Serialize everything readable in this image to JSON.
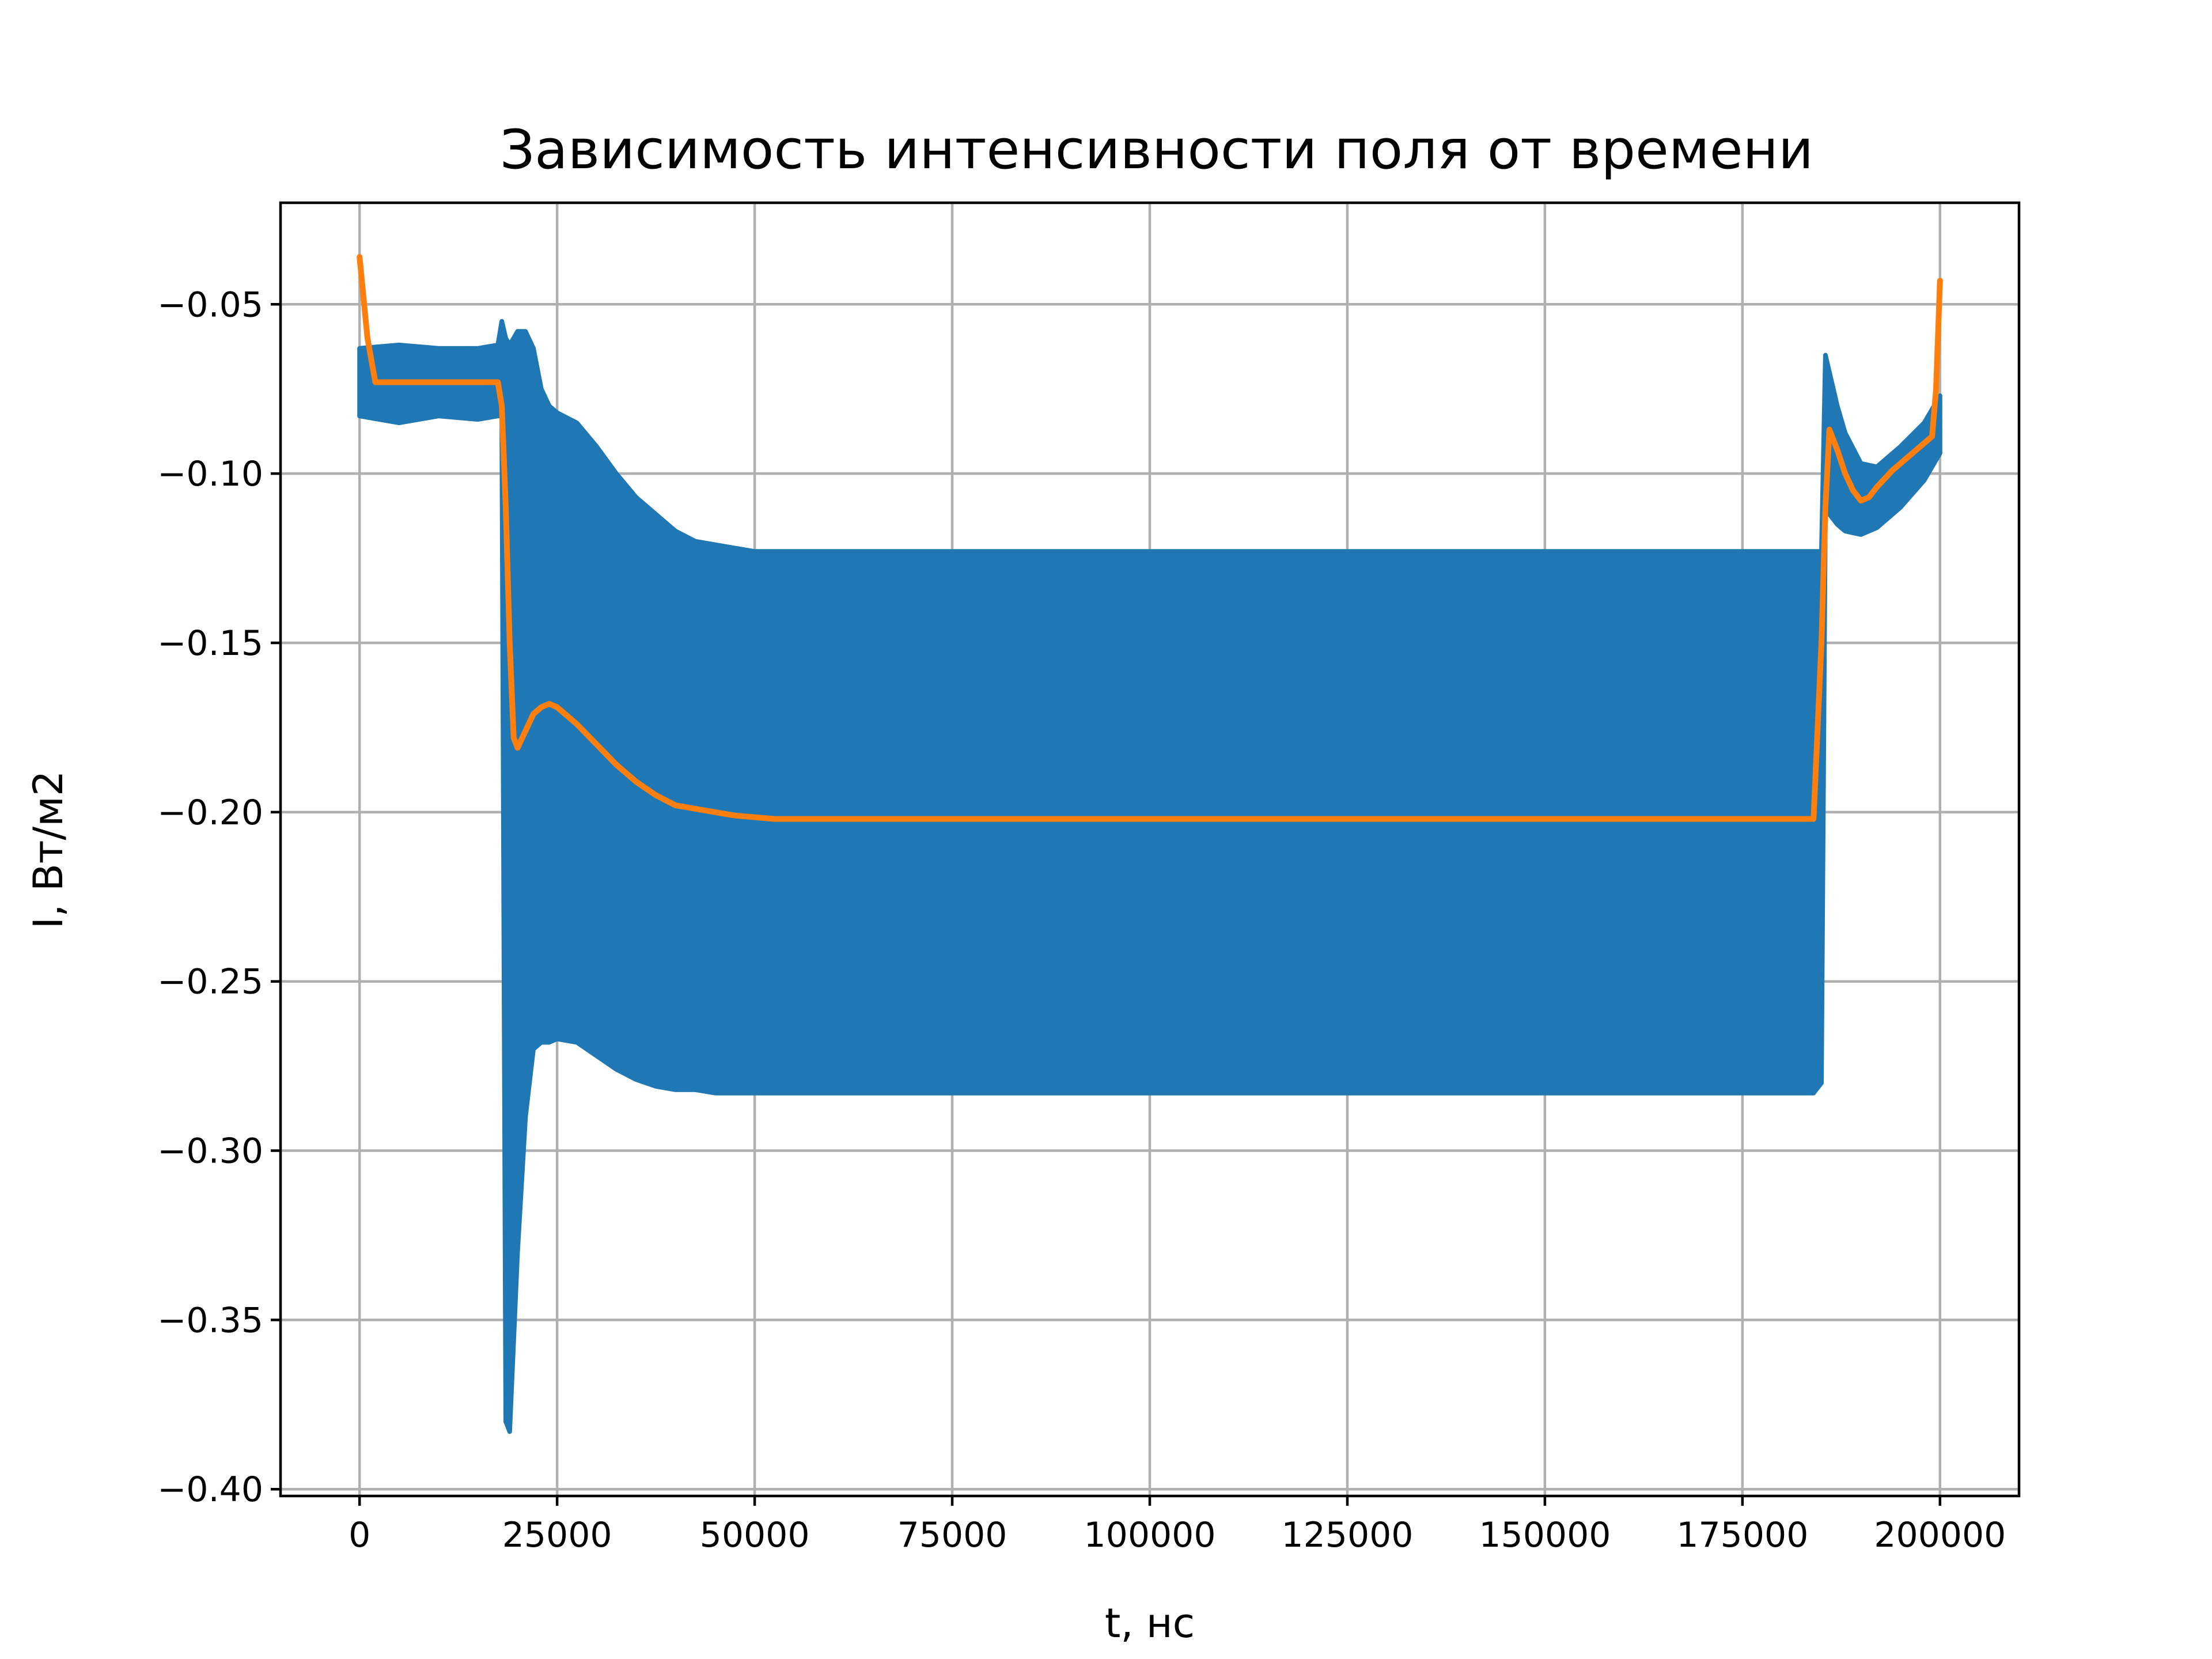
{
  "chart_data": {
    "type": "line",
    "title": "Зависимость интенсивности поля от времени",
    "xlabel": "t, нс",
    "ylabel": "I, Вт/м2",
    "xlim": [
      -10000,
      210000
    ],
    "ylim": [
      -0.402,
      -0.02
    ],
    "grid": true,
    "x_ticks": [
      0,
      25000,
      50000,
      75000,
      100000,
      125000,
      150000,
      175000,
      200000
    ],
    "x_tick_labels": [
      "0",
      "25000",
      "50000",
      "75000",
      "100000",
      "125000",
      "150000",
      "175000",
      "200000"
    ],
    "y_ticks": [
      -0.05,
      -0.1,
      -0.15,
      -0.2,
      -0.25,
      -0.3,
      -0.35,
      -0.4
    ],
    "y_tick_labels": [
      "−0.05",
      "−0.10",
      "−0.15",
      "−0.20",
      "−0.25",
      "−0.30",
      "−0.35",
      "−0.40"
    ],
    "series": [
      {
        "color": "#1f77b4",
        "kind": "band",
        "x": [
          0,
          5000,
          10000,
          15000,
          17500,
          18000,
          18500,
          19000,
          20000,
          21000,
          22000,
          23000,
          24000,
          25000,
          27500,
          30000,
          32500,
          35000,
          37500,
          40000,
          42500,
          45000,
          47500,
          50000,
          60000,
          75000,
          100000,
          125000,
          150000,
          175000,
          184000,
          185000,
          185500,
          186000,
          187000,
          188000,
          190000,
          192000,
          195000,
          198000,
          200000
        ],
        "upper": [
          -0.063,
          -0.062,
          -0.063,
          -0.063,
          -0.062,
          -0.055,
          -0.06,
          -0.062,
          -0.058,
          -0.058,
          -0.063,
          -0.075,
          -0.08,
          -0.082,
          -0.085,
          -0.092,
          -0.1,
          -0.107,
          -0.112,
          -0.117,
          -0.12,
          -0.121,
          -0.122,
          -0.123,
          -0.123,
          -0.123,
          -0.123,
          -0.123,
          -0.123,
          -0.123,
          -0.123,
          -0.123,
          -0.065,
          -0.07,
          -0.08,
          -0.088,
          -0.097,
          -0.098,
          -0.092,
          -0.085,
          -0.077
        ],
        "lower": [
          -0.083,
          -0.085,
          -0.083,
          -0.084,
          -0.083,
          -0.083,
          -0.38,
          -0.383,
          -0.33,
          -0.29,
          -0.27,
          -0.268,
          -0.268,
          -0.267,
          -0.268,
          -0.272,
          -0.276,
          -0.279,
          -0.281,
          -0.282,
          -0.282,
          -0.283,
          -0.283,
          -0.283,
          -0.283,
          -0.283,
          -0.283,
          -0.283,
          -0.283,
          -0.283,
          -0.283,
          -0.28,
          -0.11,
          -0.112,
          -0.115,
          -0.117,
          -0.118,
          -0.116,
          -0.11,
          -0.102,
          -0.094
        ]
      },
      {
        "color": "#ff7f0e",
        "kind": "line",
        "x": [
          0,
          1000,
          2000,
          5000,
          10000,
          15000,
          17500,
          18000,
          18500,
          19000,
          19500,
          20000,
          21000,
          22000,
          23000,
          24000,
          25000,
          27500,
          30000,
          32500,
          35000,
          37500,
          40000,
          42500,
          45000,
          47500,
          50000,
          52500,
          55000,
          60000,
          70000,
          80000,
          100000,
          125000,
          150000,
          175000,
          184000,
          185000,
          185500,
          186000,
          187000,
          188000,
          189000,
          190000,
          191000,
          192000,
          194000,
          196000,
          198000,
          199000,
          199500,
          200000
        ],
        "y": [
          -0.036,
          -0.06,
          -0.073,
          -0.073,
          -0.073,
          -0.073,
          -0.073,
          -0.08,
          -0.11,
          -0.15,
          -0.178,
          -0.181,
          -0.176,
          -0.171,
          -0.169,
          -0.168,
          -0.169,
          -0.174,
          -0.18,
          -0.186,
          -0.191,
          -0.195,
          -0.198,
          -0.199,
          -0.2,
          -0.201,
          -0.2015,
          -0.202,
          -0.202,
          -0.202,
          -0.202,
          -0.202,
          -0.202,
          -0.202,
          -0.202,
          -0.202,
          -0.202,
          -0.15,
          -0.11,
          -0.087,
          -0.093,
          -0.1,
          -0.105,
          -0.108,
          -0.107,
          -0.104,
          -0.099,
          -0.095,
          -0.091,
          -0.089,
          -0.075,
          -0.043
        ]
      }
    ]
  }
}
